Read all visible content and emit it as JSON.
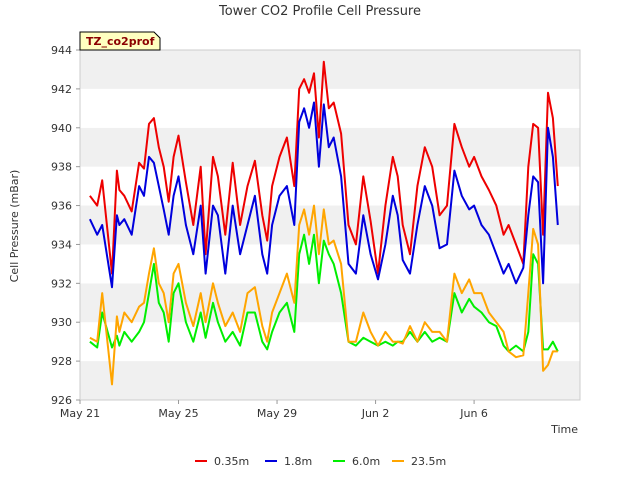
{
  "chart_data": {
    "type": "line",
    "title": "Tower CO2 Profile Cell Pressure",
    "tag": "TZ_co2prof",
    "xlabel": "Time",
    "ylabel": "Cell Pressure (mBar)",
    "xlim": [
      0,
      20.3
    ],
    "ylim": [
      926,
      944
    ],
    "yticks": [
      926,
      928,
      930,
      932,
      934,
      936,
      938,
      940,
      942,
      944
    ],
    "xticks": [
      {
        "value": 0,
        "label": "May 21"
      },
      {
        "value": 4,
        "label": "May 25"
      },
      {
        "value": 8,
        "label": "May 29"
      },
      {
        "value": 12,
        "label": "Jun 2"
      },
      {
        "value": 16,
        "label": "Jun 6"
      }
    ],
    "x_units": "days since May 21",
    "grid": "horizontal bands",
    "legend_placement": "bottom",
    "series": [
      {
        "name": "0.35m",
        "color": "#ee0000",
        "x": [
          0.4,
          0.7,
          0.9,
          1.3,
          1.5,
          1.6,
          1.8,
          2.1,
          2.4,
          2.6,
          2.8,
          3.0,
          3.2,
          3.4,
          3.6,
          3.8,
          4.0,
          4.3,
          4.6,
          4.9,
          5.1,
          5.4,
          5.6,
          5.9,
          6.2,
          6.5,
          6.8,
          7.1,
          7.4,
          7.6,
          7.8,
          8.1,
          8.4,
          8.7,
          8.9,
          9.1,
          9.3,
          9.5,
          9.7,
          9.9,
          10.1,
          10.3,
          10.6,
          10.9,
          11.2,
          11.5,
          11.8,
          12.1,
          12.4,
          12.7,
          12.9,
          13.1,
          13.4,
          13.7,
          14.0,
          14.3,
          14.6,
          14.9,
          15.2,
          15.5,
          15.8,
          16.0,
          16.3,
          16.6,
          16.9,
          17.2,
          17.4,
          17.7,
          18.0,
          18.2,
          18.4,
          18.6,
          18.8,
          19.0,
          19.2,
          19.4
        ],
        "y": [
          936.5,
          936.0,
          937.3,
          932.5,
          937.8,
          936.8,
          936.5,
          935.7,
          938.2,
          937.9,
          940.2,
          940.5,
          939.0,
          938.0,
          936.2,
          938.5,
          939.6,
          937.2,
          935.0,
          938.0,
          933.5,
          938.5,
          937.5,
          934.5,
          938.2,
          935.0,
          937.0,
          938.3,
          935.5,
          934.2,
          937.0,
          938.5,
          939.5,
          937.0,
          942.0,
          942.5,
          941.8,
          942.8,
          939.5,
          943.4,
          941.0,
          941.3,
          939.7,
          935.0,
          934.0,
          937.5,
          935.2,
          932.5,
          936.0,
          938.5,
          937.5,
          935.0,
          933.5,
          937.0,
          939.0,
          938.0,
          935.5,
          936.0,
          940.2,
          939.0,
          938.0,
          938.5,
          937.5,
          936.8,
          936.0,
          934.5,
          935.0,
          934.0,
          933.0,
          938.0,
          940.2,
          940.0,
          934.5,
          941.8,
          940.5,
          937.0
        ]
      },
      {
        "name": "1.8m",
        "color": "#0000dd",
        "x": [
          0.4,
          0.7,
          0.9,
          1.3,
          1.5,
          1.6,
          1.8,
          2.1,
          2.4,
          2.6,
          2.8,
          3.0,
          3.2,
          3.4,
          3.6,
          3.8,
          4.0,
          4.3,
          4.6,
          4.9,
          5.1,
          5.4,
          5.6,
          5.9,
          6.2,
          6.5,
          6.8,
          7.1,
          7.4,
          7.6,
          7.8,
          8.1,
          8.4,
          8.7,
          8.9,
          9.1,
          9.3,
          9.5,
          9.7,
          9.9,
          10.1,
          10.3,
          10.6,
          10.9,
          11.2,
          11.5,
          11.8,
          12.1,
          12.4,
          12.7,
          12.9,
          13.1,
          13.4,
          13.7,
          14.0,
          14.3,
          14.6,
          14.9,
          15.2,
          15.5,
          15.8,
          16.0,
          16.3,
          16.6,
          16.9,
          17.2,
          17.4,
          17.7,
          18.0,
          18.2,
          18.4,
          18.6,
          18.8,
          19.0,
          19.2,
          19.4
        ],
        "y": [
          935.3,
          934.5,
          935.0,
          931.8,
          935.5,
          935.0,
          935.3,
          934.5,
          937.0,
          936.5,
          938.5,
          938.2,
          937.0,
          935.8,
          934.5,
          936.5,
          937.5,
          935.0,
          933.5,
          936.0,
          932.5,
          936.0,
          935.5,
          932.5,
          936.0,
          933.5,
          935.0,
          936.5,
          933.5,
          932.5,
          935.0,
          936.5,
          937.0,
          935.0,
          940.3,
          941.0,
          940.0,
          941.3,
          938.0,
          941.2,
          939.0,
          939.5,
          937.5,
          933.0,
          932.5,
          935.5,
          933.5,
          932.2,
          934.0,
          936.5,
          935.5,
          933.2,
          932.5,
          935.0,
          937.0,
          936.0,
          933.8,
          934.0,
          937.8,
          936.5,
          935.8,
          936.0,
          935.0,
          934.5,
          933.5,
          932.5,
          933.0,
          932.0,
          932.8,
          935.5,
          937.5,
          937.2,
          932.0,
          940.0,
          938.5,
          935.0
        ]
      },
      {
        "name": "6.0m",
        "color": "#00ee00",
        "x": [
          0.4,
          0.7,
          0.9,
          1.3,
          1.5,
          1.6,
          1.8,
          2.1,
          2.4,
          2.6,
          2.8,
          3.0,
          3.2,
          3.4,
          3.6,
          3.8,
          4.0,
          4.3,
          4.6,
          4.9,
          5.1,
          5.4,
          5.6,
          5.9,
          6.2,
          6.5,
          6.8,
          7.1,
          7.4,
          7.6,
          7.8,
          8.1,
          8.4,
          8.7,
          8.9,
          9.1,
          9.3,
          9.5,
          9.7,
          9.9,
          10.1,
          10.3,
          10.6,
          10.9,
          11.2,
          11.5,
          11.8,
          12.1,
          12.4,
          12.7,
          12.9,
          13.1,
          13.4,
          13.7,
          14.0,
          14.3,
          14.6,
          14.9,
          15.2,
          15.5,
          15.8,
          16.0,
          16.3,
          16.6,
          16.9,
          17.2,
          17.4,
          17.7,
          18.0,
          18.2,
          18.4,
          18.6,
          18.8,
          19.0,
          19.2,
          19.4
        ],
        "y": [
          929.0,
          928.7,
          930.5,
          928.7,
          929.3,
          928.8,
          929.5,
          929.0,
          929.5,
          930.0,
          931.5,
          933.0,
          931.0,
          930.5,
          929.0,
          931.5,
          932.0,
          930.0,
          929.0,
          930.5,
          929.2,
          931.0,
          930.0,
          929.0,
          929.5,
          928.8,
          930.5,
          930.5,
          929.0,
          928.6,
          929.5,
          930.5,
          931.0,
          929.5,
          933.5,
          934.5,
          933.0,
          934.5,
          932.0,
          934.2,
          933.5,
          933.0,
          931.5,
          929.0,
          928.8,
          929.2,
          929.0,
          928.8,
          929.0,
          928.8,
          929.0,
          929.0,
          929.5,
          929.0,
          929.5,
          929.0,
          929.2,
          929.0,
          931.5,
          930.5,
          931.2,
          930.8,
          930.5,
          930.0,
          929.8,
          928.8,
          928.5,
          928.8,
          928.5,
          929.5,
          933.5,
          933.0,
          928.6,
          928.6,
          929.0,
          928.5
        ]
      },
      {
        "name": "23.5m",
        "color": "#ffa500",
        "x": [
          0.4,
          0.7,
          0.9,
          1.3,
          1.5,
          1.6,
          1.8,
          2.1,
          2.4,
          2.6,
          2.8,
          3.0,
          3.2,
          3.4,
          3.6,
          3.8,
          4.0,
          4.3,
          4.6,
          4.9,
          5.1,
          5.4,
          5.6,
          5.9,
          6.2,
          6.5,
          6.8,
          7.1,
          7.4,
          7.6,
          7.8,
          8.1,
          8.4,
          8.7,
          8.9,
          9.1,
          9.3,
          9.5,
          9.7,
          9.9,
          10.1,
          10.3,
          10.6,
          10.9,
          11.2,
          11.5,
          11.8,
          12.1,
          12.4,
          12.7,
          12.9,
          13.1,
          13.4,
          13.7,
          14.0,
          14.3,
          14.6,
          14.9,
          15.2,
          15.5,
          15.8,
          16.0,
          16.3,
          16.6,
          16.9,
          17.2,
          17.4,
          17.7,
          18.0,
          18.2,
          18.4,
          18.6,
          18.8,
          19.0,
          19.2,
          19.4
        ],
        "y": [
          929.2,
          929.0,
          931.5,
          926.8,
          930.3,
          929.5,
          930.5,
          930.0,
          930.8,
          931.0,
          932.5,
          933.8,
          932.0,
          931.5,
          930.0,
          932.5,
          933.0,
          931.0,
          929.8,
          931.5,
          930.0,
          932.0,
          931.0,
          929.8,
          930.5,
          929.5,
          931.5,
          931.8,
          929.8,
          929.0,
          930.5,
          931.5,
          932.5,
          931.0,
          935.0,
          935.8,
          934.5,
          936.0,
          933.5,
          935.8,
          934.0,
          934.2,
          933.0,
          929.0,
          929.0,
          930.5,
          929.5,
          928.8,
          929.5,
          929.0,
          929.0,
          928.9,
          929.8,
          929.0,
          930.0,
          929.5,
          929.5,
          929.0,
          932.5,
          931.5,
          932.2,
          931.5,
          931.5,
          930.5,
          930.0,
          929.5,
          928.5,
          928.2,
          928.3,
          931.5,
          934.8,
          934.0,
          927.5,
          927.8,
          928.5,
          928.5
        ]
      }
    ]
  }
}
